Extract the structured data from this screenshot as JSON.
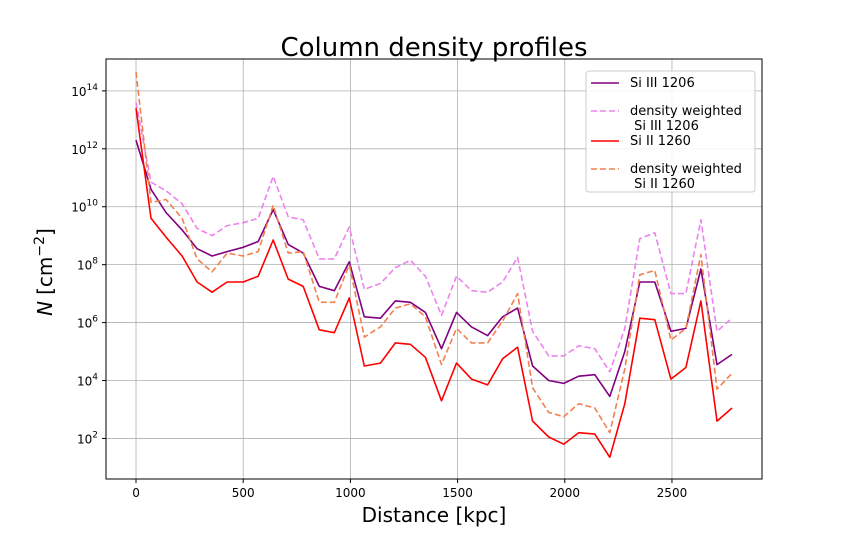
{
  "chart_data": {
    "type": "line",
    "title": "Column density profiles",
    "xlabel": "Distance [kpc]",
    "ylabel_main": "N",
    "ylabel_unit": "[cm",
    "ylabel_exp": "−2",
    "ylabel_close": "]",
    "yscale": "log",
    "xlim": [
      -140,
      2920
    ],
    "ylim_exp": [
      0.6,
      15.1
    ],
    "grid": true,
    "legend_position": "top-right",
    "x_ticks": [
      0,
      500,
      1000,
      1500,
      2000,
      2500
    ],
    "y_ticks": [
      2,
      4,
      6,
      8,
      10,
      12,
      14
    ],
    "y_tick_base": "10",
    "x": [
      0,
      70,
      140,
      215,
      285,
      355,
      425,
      500,
      570,
      640,
      710,
      780,
      855,
      925,
      995,
      1065,
      1140,
      1210,
      1280,
      1350,
      1425,
      1495,
      1565,
      1640,
      1710,
      1780,
      1850,
      1925,
      1995,
      2065,
      2140,
      2210,
      2280,
      2350,
      2420,
      2495,
      2565,
      2635,
      2710,
      2780
    ],
    "series": [
      {
        "name": "Si III 1206",
        "color": "#800080",
        "dash": false,
        "values_log10": [
          12.3,
          10.6,
          9.8,
          9.2,
          8.55,
          8.3,
          8.45,
          8.6,
          8.8,
          9.9,
          8.7,
          8.4,
          7.25,
          7.1,
          8.1,
          6.2,
          6.15,
          6.75,
          6.7,
          6.35,
          5.1,
          6.35,
          5.85,
          5.55,
          6.2,
          6.5,
          4.5,
          4.0,
          3.9,
          4.15,
          4.2,
          3.45,
          5.0,
          7.4,
          7.4,
          5.7,
          5.8,
          7.85,
          4.55,
          4.9
        ]
      },
      {
        "name": "density weighted\n Si III 1206",
        "color": "#ee82ee",
        "dash": true,
        "values_log10": [
          13.6,
          10.85,
          10.55,
          10.1,
          9.25,
          9.0,
          9.35,
          9.45,
          9.6,
          11.05,
          9.65,
          9.55,
          8.2,
          8.2,
          9.3,
          7.15,
          7.35,
          7.9,
          8.15,
          7.6,
          6.25,
          7.6,
          7.1,
          7.05,
          7.4,
          8.25,
          5.7,
          4.85,
          4.85,
          5.2,
          5.1,
          4.3,
          5.8,
          8.9,
          9.1,
          7.0,
          7.0,
          9.55,
          5.7,
          6.15
        ]
      },
      {
        "name": "Si II 1260",
        "color": "#ff0000",
        "dash": false,
        "values_log10": [
          13.4,
          9.6,
          8.95,
          8.3,
          7.4,
          7.05,
          7.4,
          7.4,
          7.6,
          8.85,
          7.5,
          7.25,
          5.75,
          5.65,
          6.85,
          4.5,
          4.6,
          5.3,
          5.25,
          4.8,
          3.3,
          4.6,
          4.05,
          3.85,
          4.75,
          5.15,
          2.6,
          2.05,
          1.8,
          2.2,
          2.15,
          1.35,
          3.2,
          6.15,
          6.1,
          4.05,
          4.45,
          6.75,
          2.6,
          3.05
        ]
      },
      {
        "name": "density weighted\n Si II 1260",
        "color": "#f08050",
        "dash": true,
        "values_log10": [
          14.65,
          10.15,
          10.25,
          9.6,
          8.2,
          7.75,
          8.4,
          8.3,
          8.45,
          10.05,
          8.4,
          8.45,
          6.7,
          6.7,
          8.0,
          5.5,
          5.85,
          6.5,
          6.65,
          6.2,
          4.55,
          5.8,
          5.3,
          5.3,
          6.05,
          7.0,
          3.75,
          2.9,
          2.75,
          3.2,
          3.05,
          2.2,
          4.4,
          7.65,
          7.8,
          5.4,
          5.8,
          8.35,
          3.7,
          4.25
        ]
      }
    ]
  }
}
